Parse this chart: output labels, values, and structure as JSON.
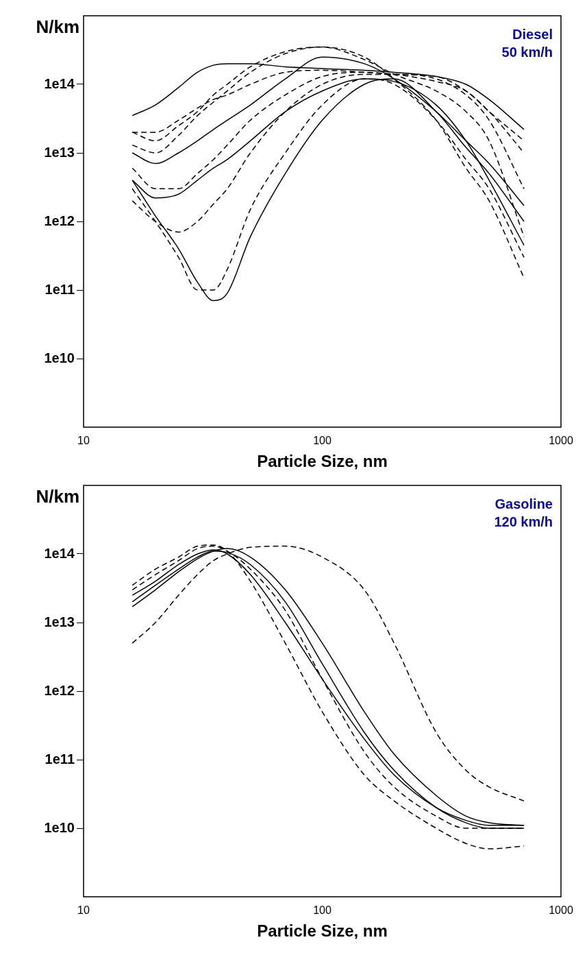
{
  "chart_data": [
    {
      "type": "line",
      "xlabel": "Particle Size, nm",
      "ylabel": "N/km",
      "annotations": [
        "Diesel",
        "50 km/h"
      ],
      "log": "xy",
      "grid": false,
      "legend": false,
      "marker": "none",
      "x": [
        16,
        20,
        25,
        30,
        35,
        40,
        50,
        70,
        100,
        150,
        200,
        300,
        400,
        500,
        700
      ],
      "xlim": [
        10,
        1000
      ],
      "xticks": [
        10,
        100,
        1000
      ],
      "ylim": [
        1000000000.0,
        1000000000000000.0
      ],
      "yticks": [
        {
          "value": 10000000000.0,
          "label": "1e10"
        },
        {
          "value": 100000000000.0,
          "label": "1e11"
        },
        {
          "value": 1000000000000.0,
          "label": "1e12"
        },
        {
          "value": 10000000000000.0,
          "label": "1e13"
        },
        {
          "value": 100000000000000.0,
          "label": "1e14"
        }
      ],
      "series": [
        {
          "color": "#000000",
          "line_style": "solid",
          "values": [
            35000000000000.0,
            50000000000000.0,
            90000000000000.0,
            150000000000000.0,
            190000000000000.0,
            200000000000000.0,
            200000000000000.0,
            180000000000000.0,
            170000000000000.0,
            160000000000000.0,
            150000000000000.0,
            130000000000000.0,
            100000000000000.0,
            60000000000000.0,
            22000000000000.0
          ]
        },
        {
          "color": "#000000",
          "line_style": "solid",
          "values": [
            10000000000000.0,
            7000000000000.0,
            10000000000000.0,
            15000000000000.0,
            22000000000000.0,
            30000000000000.0,
            50000000000000.0,
            120000000000000.0,
            250000000000000.0,
            200000000000000.0,
            120000000000000.0,
            40000000000000.0,
            15000000000000.0,
            7000000000000.0,
            1700000000000.0
          ]
        },
        {
          "color": "#000000",
          "line_style": "solid",
          "values": [
            4000000000000.0,
            2200000000000.0,
            2500000000000.0,
            4000000000000.0,
            6000000000000.0,
            8000000000000.0,
            15000000000000.0,
            40000000000000.0,
            80000000000000.0,
            120000000000000.0,
            110000000000000.0,
            50000000000000.0,
            15000000000000.0,
            4000000000000.0,
            450000000000.0
          ]
        },
        {
          "color": "#000000",
          "line_style": "solid",
          "values": [
            4000000000000.0,
            1200000000000.0,
            400000000000.0,
            130000000000.0,
            70000000000.0,
            90000000000.0,
            600000000000.0,
            5000000000000.0,
            30000000000000.0,
            100000000000000.0,
            120000000000000.0,
            40000000000000.0,
            12000000000000.0,
            5000000000000.0,
            1000000000000.0
          ]
        },
        {
          "color": "#000000",
          "line_style": "dashed",
          "values": [
            3000000000000.0,
            1000000000000.0,
            300000000000.0,
            100000000000.0,
            100000000000.0,
            200000000000.0,
            1500000000000.0,
            10000000000000.0,
            50000000000000.0,
            120000000000000.0,
            100000000000000.0,
            30000000000000.0,
            8000000000000.0,
            3000000000000.0,
            300000000000.0
          ]
        },
        {
          "color": "#000000",
          "line_style": "dashed",
          "values": [
            20000000000000.0,
            15000000000000.0,
            25000000000000.0,
            40000000000000.0,
            70000000000000.0,
            100000000000000.0,
            180000000000000.0,
            300000000000000.0,
            350000000000000.0,
            250000000000000.0,
            120000000000000.0,
            30000000000000.0,
            6000000000000.0,
            2000000000000.0,
            150000000000.0
          ]
        },
        {
          "color": "#000000",
          "line_style": "dashed",
          "values": [
            13000000000000.0,
            10000000000000.0,
            18000000000000.0,
            35000000000000.0,
            55000000000000.0,
            80000000000000.0,
            150000000000000.0,
            280000000000000.0,
            350000000000000.0,
            230000000000000.0,
            140000000000000.0,
            80000000000000.0,
            40000000000000.0,
            15000000000000.0,
            600000000000.0
          ]
        },
        {
          "color": "#000000",
          "line_style": "dashed",
          "values": [
            2000000000000.0,
            1000000000000.0,
            700000000000.0,
            1000000000000.0,
            1800000000000.0,
            3000000000000.0,
            10000000000000.0,
            40000000000000.0,
            100000000000000.0,
            140000000000000.0,
            140000000000000.0,
            120000000000000.0,
            70000000000000.0,
            30000000000000.0,
            3000000000000.0
          ]
        },
        {
          "color": "#000000",
          "line_style": "dashed",
          "values": [
            6000000000000.0,
            3000000000000.0,
            3000000000000.0,
            5000000000000.0,
            8000000000000.0,
            13000000000000.0,
            30000000000000.0,
            70000000000000.0,
            130000000000000.0,
            150000000000000.0,
            140000000000000.0,
            130000000000000.0,
            80000000000000.0,
            40000000000000.0,
            10000000000000.0
          ]
        },
        {
          "color": "#000000",
          "line_style": "dashed",
          "values": [
            20000000000000.0,
            20000000000000.0,
            30000000000000.0,
            45000000000000.0,
            60000000000000.0,
            70000000000000.0,
            100000000000000.0,
            150000000000000.0,
            160000000000000.0,
            150000000000000.0,
            140000000000000.0,
            110000000000000.0,
            80000000000000.0,
            40000000000000.0,
            15000000000000.0
          ]
        }
      ]
    },
    {
      "type": "line",
      "xlabel": "Particle Size, nm",
      "ylabel": "N/km",
      "annotations": [
        "Gasoline",
        "120 km/h"
      ],
      "log": "xy",
      "grid": false,
      "legend": false,
      "marker": "none",
      "x": [
        16,
        20,
        25,
        30,
        35,
        40,
        50,
        70,
        100,
        150,
        200,
        300,
        400,
        500,
        700
      ],
      "xlim": [
        10,
        1000
      ],
      "xticks": [
        10,
        100,
        1000
      ],
      "ylim": [
        1000000000.0,
        1000000000000000.0
      ],
      "yticks": [
        {
          "value": 10000000000.0,
          "label": "1e10"
        },
        {
          "value": 100000000000.0,
          "label": "1e11"
        },
        {
          "value": 1000000000000.0,
          "label": "1e12"
        },
        {
          "value": 10000000000000.0,
          "label": "1e13"
        },
        {
          "value": 100000000000000.0,
          "label": "1e14"
        }
      ],
      "series": [
        {
          "color": "#000000",
          "line_style": "solid",
          "values": [
            25000000000000.0,
            40000000000000.0,
            70000000000000.0,
            100000000000000.0,
            115000000000000.0,
            100000000000000.0,
            50000000000000.0,
            10000000000000.0,
            1500000000000.0,
            200000000000.0,
            60000000000.0,
            20000000000.0,
            13000000000.0,
            11000000000.0,
            11000000000.0
          ]
        },
        {
          "color": "#000000",
          "line_style": "solid",
          "values": [
            20000000000000.0,
            35000000000000.0,
            60000000000000.0,
            90000000000000.0,
            110000000000000.0,
            105000000000000.0,
            70000000000000.0,
            20000000000000.0,
            2500000000000.0,
            250000000000.0,
            70000000000.0,
            20000000000.0,
            12000000000.0,
            10000000000.0,
            10000000000.0
          ]
        },
        {
          "color": "#000000",
          "line_style": "solid",
          "values": [
            17000000000000.0,
            30000000000000.0,
            55000000000000.0,
            85000000000000.0,
            110000000000000.0,
            120000000000000.0,
            90000000000000.0,
            30000000000000.0,
            5000000000000.0,
            500000000000.0,
            120000000000.0,
            30000000000.0,
            15000000000.0,
            12000000000.0,
            11000000000.0
          ]
        },
        {
          "color": "#000000",
          "line_style": "dashed",
          "values": [
            35000000000000.0,
            60000000000000.0,
            90000000000000.0,
            130000000000000.0,
            135000000000000.0,
            110000000000000.0,
            40000000000000.0,
            5000000000000.0,
            500000000000.0,
            60000000000.0,
            25000000000.0,
            10000000000.0,
            6000000000.0,
            5000000000.0,
            5500000000.0
          ]
        },
        {
          "color": "#000000",
          "line_style": "dashed",
          "values": [
            30000000000000.0,
            50000000000000.0,
            80000000000000.0,
            120000000000000.0,
            130000000000000.0,
            110000000000000.0,
            60000000000000.0,
            15000000000000.0,
            1500000000000.0,
            130000000000.0,
            40000000000.0,
            15000000000.0,
            10000000000.0,
            10000000000.0,
            10000000000.0
          ]
        },
        {
          "color": "#000000",
          "line_style": "dashed",
          "values": [
            5000000000000.0,
            10000000000000.0,
            25000000000000.0,
            50000000000000.0,
            80000000000000.0,
            100000000000000.0,
            125000000000000.0,
            130000000000000.0,
            90000000000000.0,
            30000000000000.0,
            5000000000000.0,
            250000000000.0,
            70000000000.0,
            40000000000.0,
            25000000000.0
          ]
        }
      ]
    }
  ]
}
